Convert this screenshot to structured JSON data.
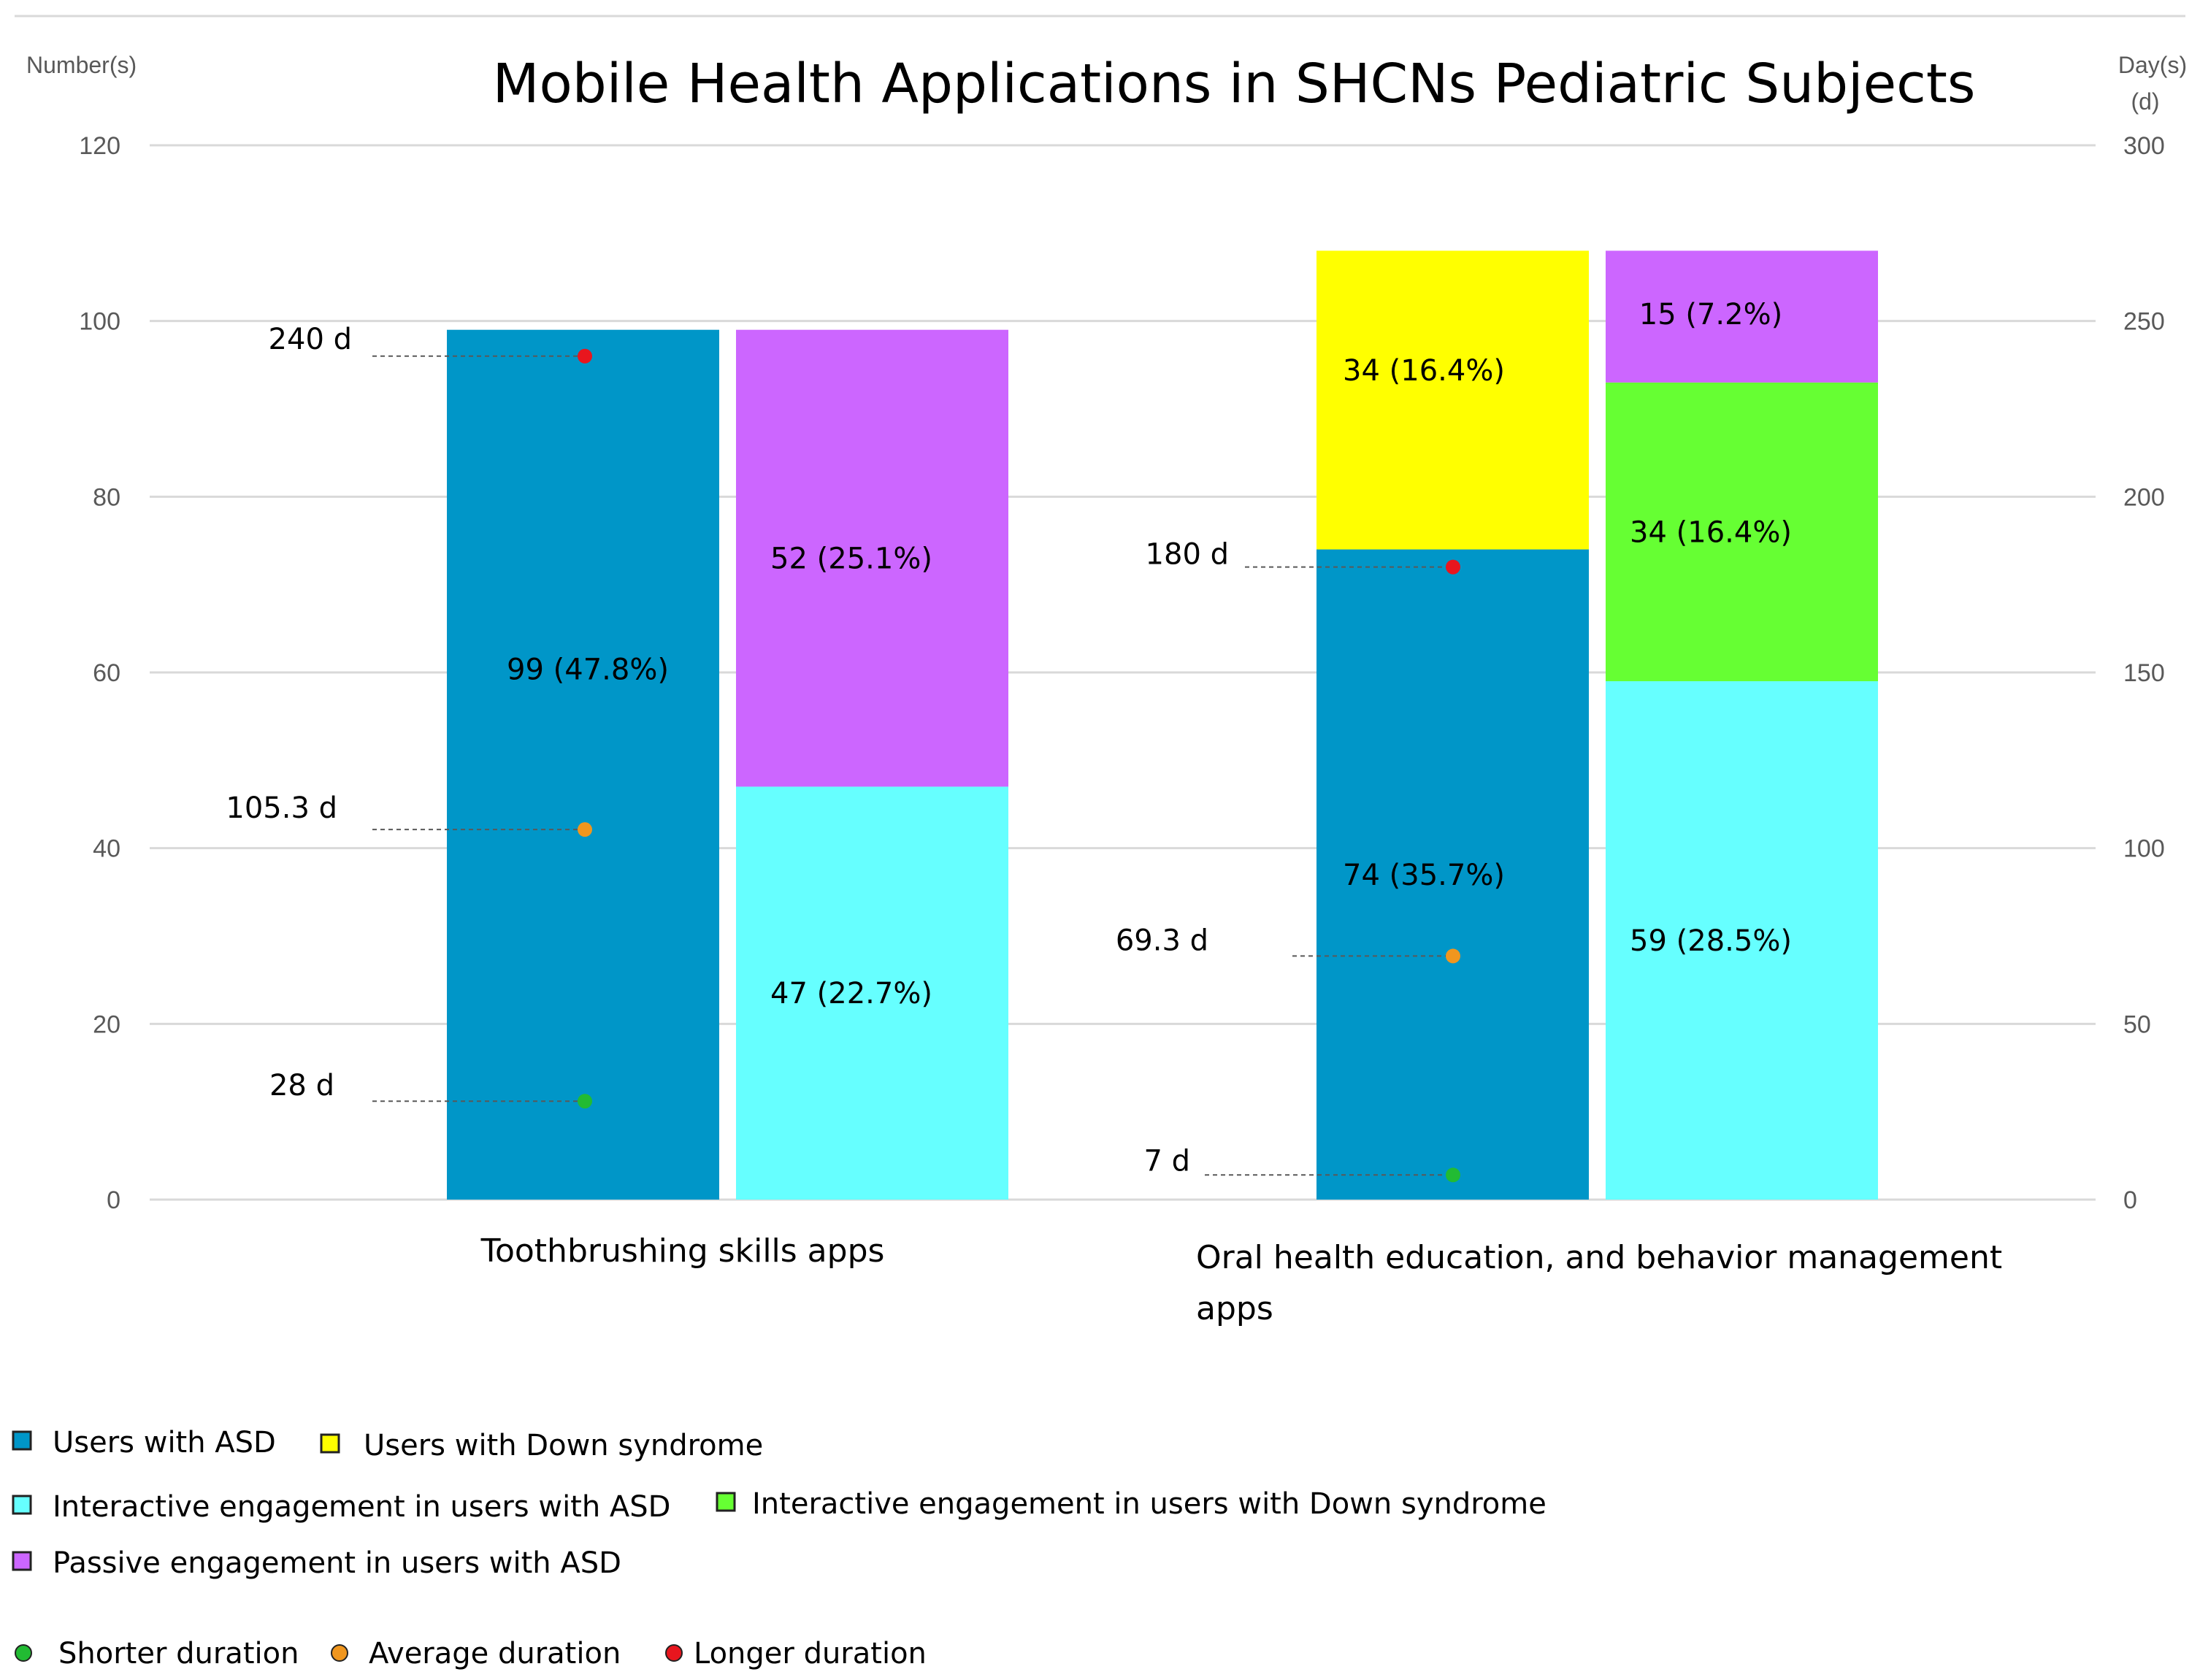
{
  "chart_data": {
    "type": "bar",
    "stacked": true,
    "title": "Mobile Health Applications in SHCNs Pediatric Subjects",
    "ylabel_left": "Number(s)",
    "ylabel_right_line1": "Day(s)",
    "ylabel_right_line2": "(d)",
    "ylim_left": [
      0,
      120
    ],
    "ylim_right": [
      0,
      300
    ],
    "left_ticks": [
      "0",
      "20",
      "40",
      "60",
      "80",
      "100",
      "120"
    ],
    "right_ticks": [
      "0",
      "50",
      "100",
      "150",
      "200",
      "250",
      "300"
    ],
    "categories": [
      {
        "name": "Toothbrushing skills apps",
        "label_lines": [
          "Toothbrushing skills apps"
        ],
        "bars": [
          {
            "segments": [
              {
                "series": "Users with ASD",
                "value": 99,
                "label": "99 (47.8%)"
              }
            ]
          },
          {
            "segments": [
              {
                "series": "Interactive engagement in users with ASD",
                "value": 47,
                "label": "47 (22.7%)"
              },
              {
                "series": "Passive engagement in users with ASD",
                "value": 52,
                "label": "52 (25.1%)"
              }
            ]
          }
        ],
        "durations": [
          {
            "kind": "Longer duration",
            "days": 240,
            "label": "240 d"
          },
          {
            "kind": "Average duration",
            "days": 105.3,
            "label": "105.3 d"
          },
          {
            "kind": "Shorter duration",
            "days": 28,
            "label": "28 d"
          }
        ]
      },
      {
        "name": "Oral health education, and behavior management apps",
        "label_lines": [
          "Oral health education, and behavior management",
          "apps"
        ],
        "bars": [
          {
            "segments": [
              {
                "series": "Users with ASD",
                "value": 74,
                "label": "74 (35.7%)"
              },
              {
                "series": "Users with Down syndrome",
                "value": 34,
                "label": "34 (16.4%)"
              }
            ]
          },
          {
            "segments": [
              {
                "series": "Interactive engagement in users with ASD",
                "value": 59,
                "label": "59 (28.5%)"
              },
              {
                "series": "Interactive engagement in users with Down syndrome",
                "value": 34,
                "label": "34 (16.4%)"
              },
              {
                "series": "Passive engagement in users with ASD",
                "value": 15,
                "label": "15 (7.2%)"
              }
            ]
          }
        ],
        "durations": [
          {
            "kind": "Longer duration",
            "days": 180,
            "label": "180 d"
          },
          {
            "kind": "Average duration",
            "days": 69.3,
            "label": "69.3 d"
          },
          {
            "kind": "Shorter duration",
            "days": 7,
            "label": "7 d"
          }
        ]
      }
    ],
    "series_colors": {
      "Users with ASD": "#0096C8",
      "Users with Down syndrome": "#FFFF00",
      "Interactive engagement in users with ASD": "#66FFFF",
      "Interactive engagement in users with Down syndrome": "#66FF33",
      "Passive engagement in users with ASD": "#CC66FF"
    },
    "duration_colors": {
      "Shorter duration": "#22BB33",
      "Average duration": "#F0961E",
      "Longer duration": "#E8161E"
    },
    "legend_series": [
      "Users with ASD",
      "Users with Down syndrome",
      "Interactive engagement in users with ASD",
      "Interactive engagement in users with Down syndrome",
      "Passive engagement in users with ASD"
    ],
    "legend_durations": [
      "Shorter duration",
      "Average duration",
      "Longer duration"
    ]
  }
}
